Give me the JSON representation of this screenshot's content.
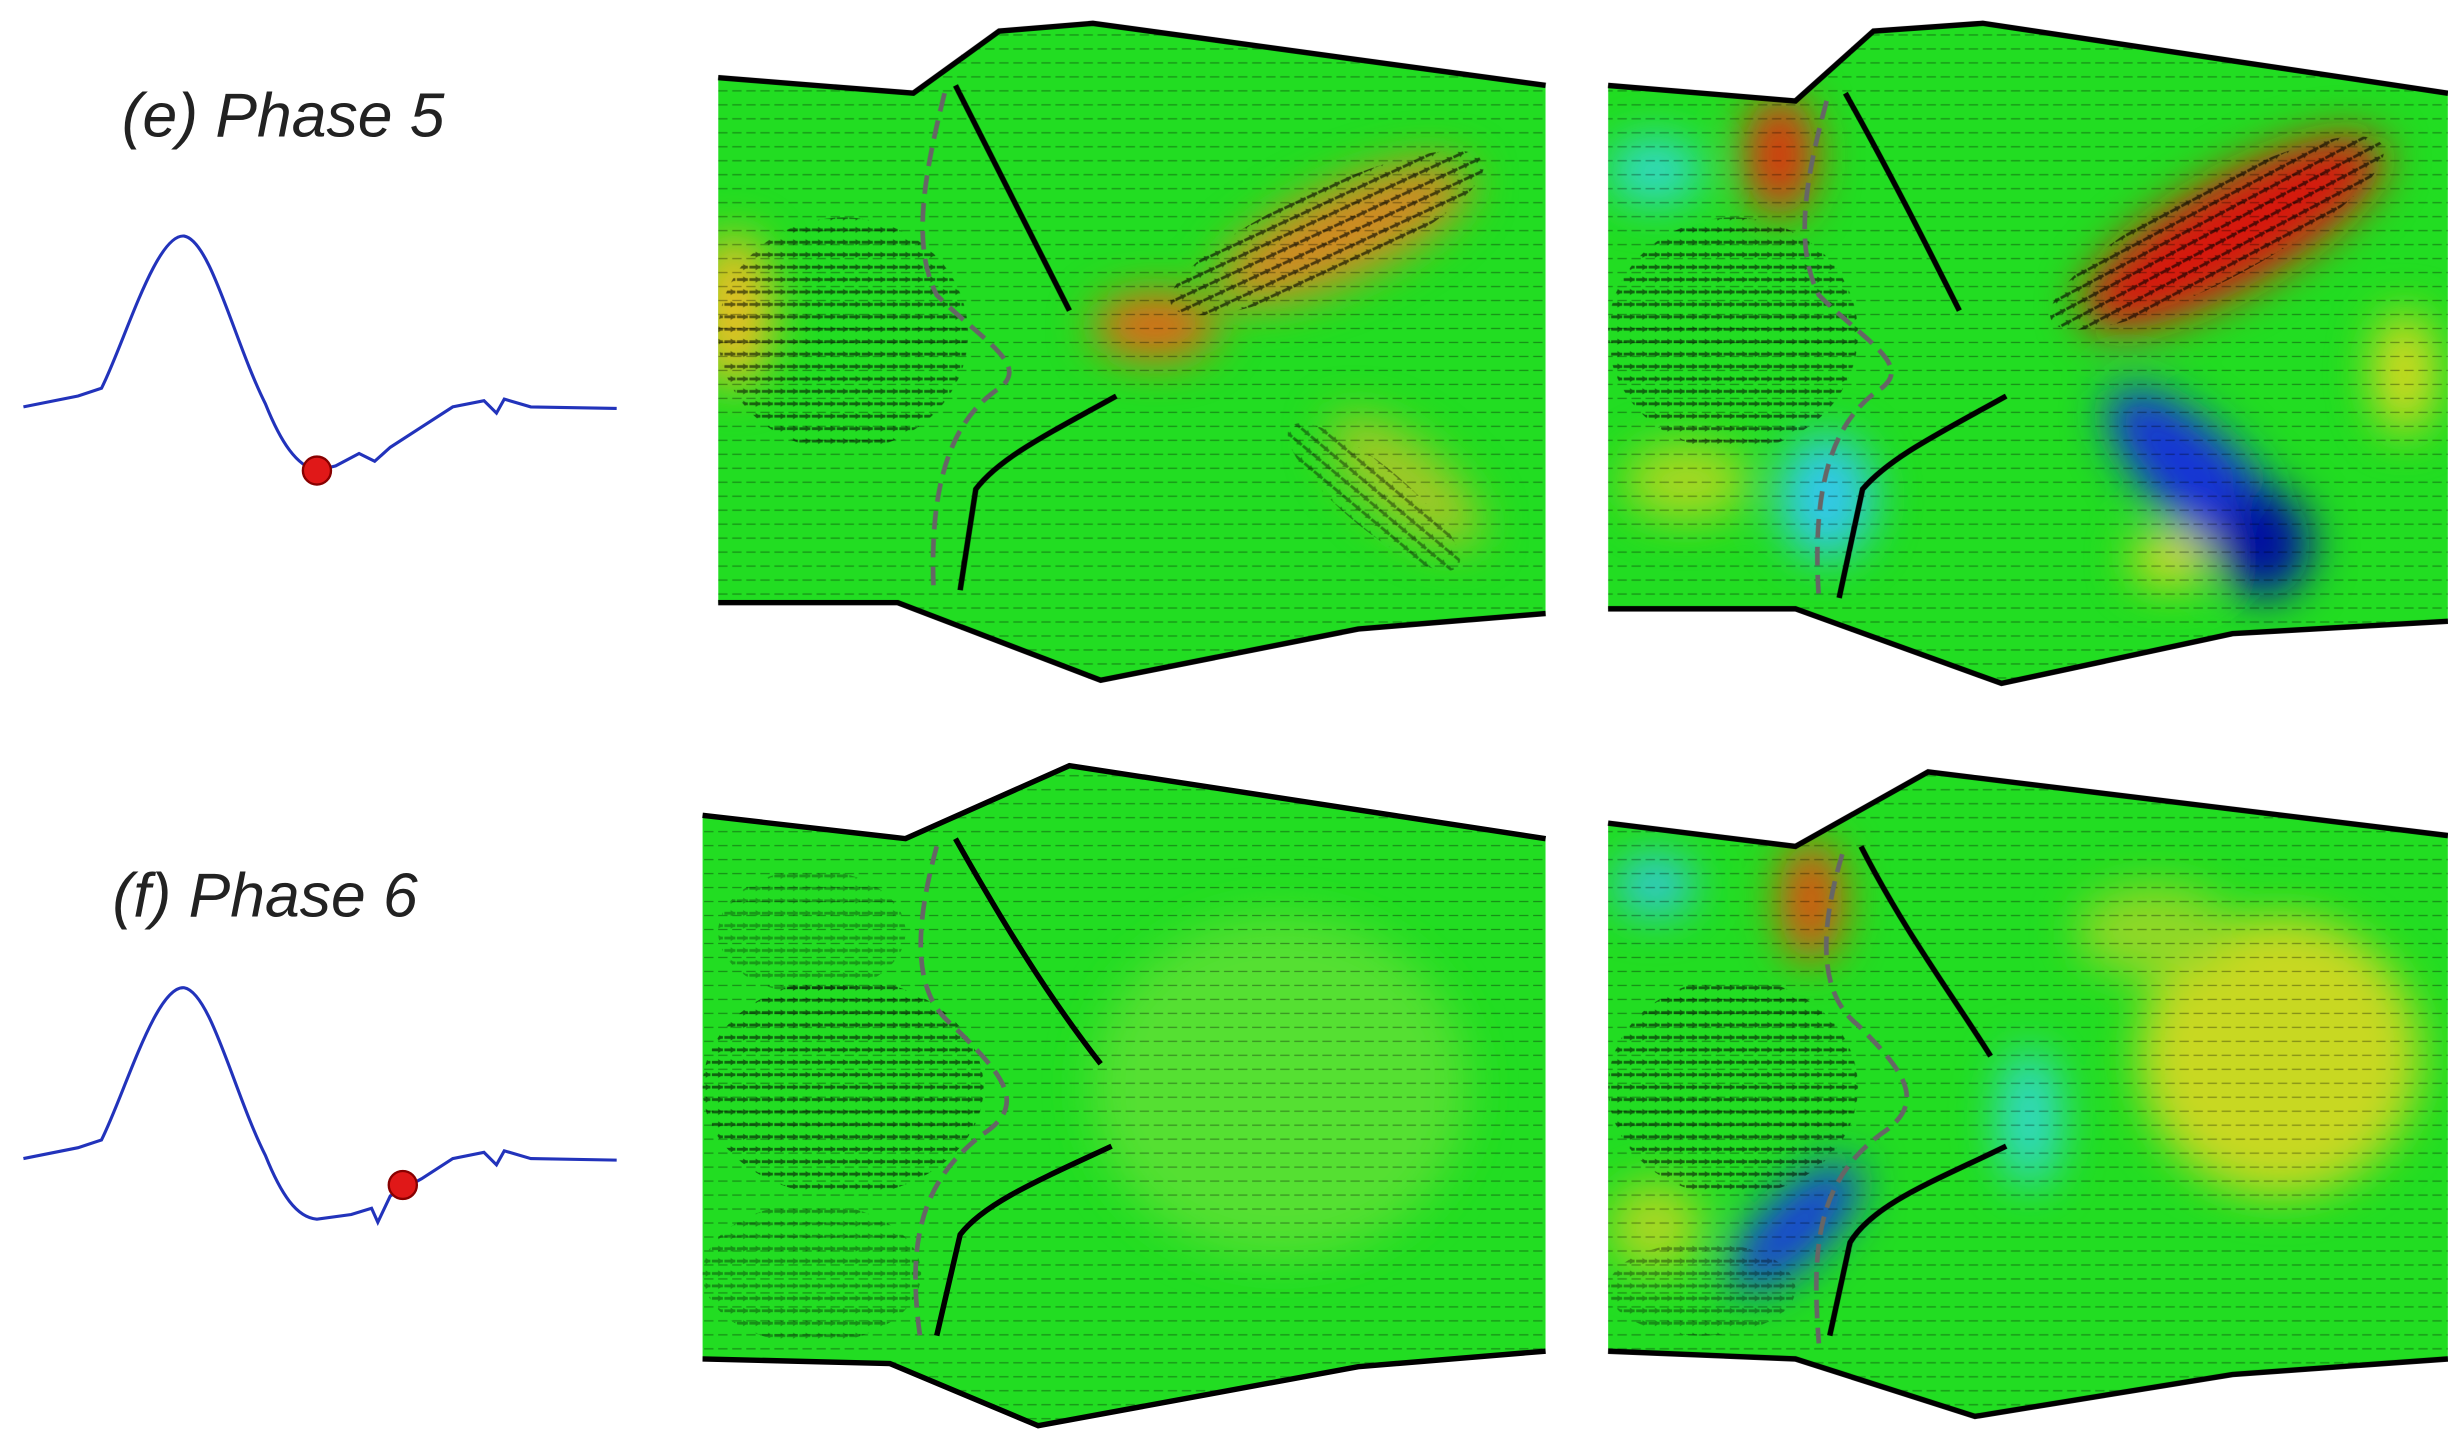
{
  "rows": [
    {
      "label": "(e) Phase 5"
    },
    {
      "label": "(f) Phase 6"
    }
  ]
}
